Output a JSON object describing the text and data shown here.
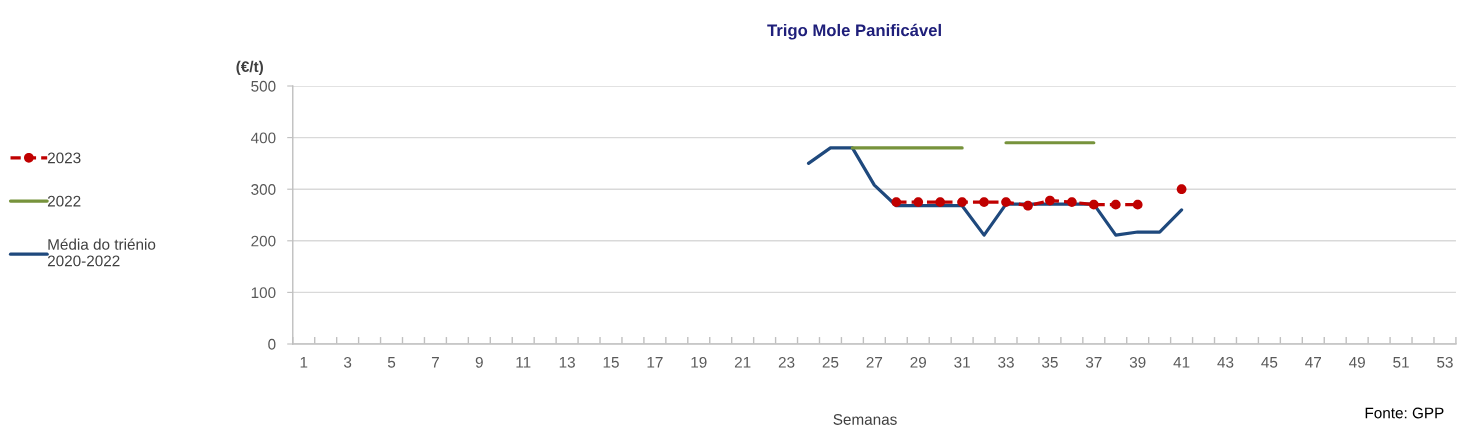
{
  "chart_data": {
    "type": "line",
    "title": "Trigo Mole Panificável",
    "ylabel": "(€/t)",
    "xlabel": "Semanas",
    "annotations": [
      "Fonte: GPP"
    ],
    "categories": [
      "1",
      null,
      "3",
      null,
      "5",
      null,
      "7",
      null,
      "9",
      null,
      "11",
      null,
      "13",
      null,
      "15",
      null,
      "17",
      null,
      "19",
      null,
      "21",
      null,
      "23",
      null,
      "25",
      null,
      "27",
      null,
      "29",
      null,
      "31",
      null,
      "33",
      null,
      "35",
      null,
      "37",
      null,
      "39",
      null,
      "41",
      null,
      "43",
      null,
      "45",
      null,
      "47",
      null,
      "49",
      null,
      "51",
      null,
      "53"
    ],
    "series": [
      {
        "name": "2023",
        "color": "#c00000",
        "marker": "circle",
        "line_style": "dashed",
        "values": [
          null,
          null,
          null,
          null,
          null,
          null,
          null,
          null,
          null,
          null,
          null,
          null,
          null,
          null,
          null,
          null,
          null,
          null,
          null,
          null,
          null,
          null,
          null,
          null,
          null,
          null,
          null,
          275,
          275,
          275,
          275,
          275,
          275,
          268,
          278,
          275,
          270,
          270,
          270,
          null,
          300,
          null,
          null,
          null,
          null,
          null,
          null,
          null,
          null,
          null,
          null,
          null,
          null
        ]
      },
      {
        "name": "2022",
        "color": "#77933c",
        "marker": "none",
        "line_style": "solid",
        "values": [
          null,
          null,
          null,
          null,
          null,
          null,
          null,
          null,
          null,
          null,
          null,
          null,
          null,
          null,
          null,
          null,
          null,
          null,
          null,
          null,
          null,
          null,
          null,
          null,
          null,
          380,
          380,
          380,
          380,
          380,
          380,
          null,
          390,
          390,
          390,
          390,
          390,
          null,
          null,
          null,
          null,
          null,
          null,
          null,
          null,
          null,
          null,
          null,
          null,
          null,
          null,
          null,
          null
        ]
      },
      {
        "name": "Média do triénio\n2020-2022",
        "color": "#1f497d",
        "marker": "none",
        "line_style": "solid",
        "values": [
          null,
          null,
          null,
          null,
          null,
          null,
          null,
          null,
          null,
          null,
          null,
          null,
          null,
          null,
          null,
          null,
          null,
          null,
          null,
          null,
          null,
          null,
          null,
          350,
          380,
          380,
          308,
          268,
          268,
          268,
          268,
          211,
          271,
          271,
          271,
          271,
          271,
          211,
          217,
          217,
          260,
          null,
          null,
          null,
          null,
          null,
          null,
          null,
          null,
          null,
          null,
          null,
          null
        ]
      }
    ],
    "ylim": [
      0,
      500
    ],
    "yticks": [
      0,
      100,
      200,
      300,
      400,
      500
    ],
    "grid": "y",
    "legend": "left"
  }
}
